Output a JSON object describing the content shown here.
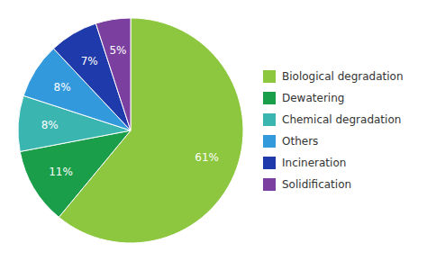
{
  "chart_data": {
    "type": "pie",
    "categories": [
      "Biological degradation",
      "Dewatering",
      "Chemical degradation",
      "Others",
      "Incineration",
      "Solidification"
    ],
    "values": [
      61,
      11,
      8,
      8,
      7,
      5
    ],
    "value_labels": [
      "61%",
      "11%",
      "8%",
      "8%",
      "7%",
      "5%"
    ],
    "colors": [
      "#8dc63f",
      "#1a9e4a",
      "#3ab5b0",
      "#3399dd",
      "#1f3aaa",
      "#7b3fa0"
    ],
    "data_labels": true,
    "legend": "right"
  }
}
